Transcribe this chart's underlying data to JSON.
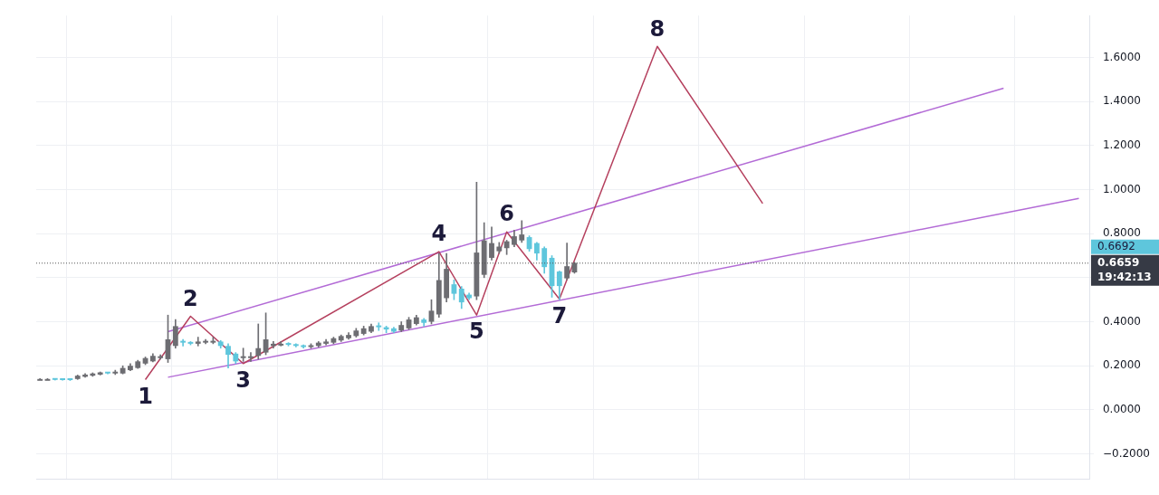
{
  "chart_data": {
    "type": "candlestick",
    "categories": [
      null,
      null,
      null,
      null,
      null,
      null,
      null,
      null,
      null,
      null,
      null,
      null,
      null,
      null,
      null,
      null,
      null,
      null,
      null,
      null,
      null,
      null,
      null,
      null,
      null,
      null,
      null,
      null,
      null,
      null,
      null,
      null,
      null,
      null,
      null,
      null,
      null,
      null,
      null,
      null,
      null,
      null,
      null,
      null,
      null,
      null,
      null,
      null,
      null,
      null,
      null,
      null,
      null,
      null,
      null,
      null,
      null,
      null,
      null,
      null,
      null,
      null,
      null,
      null,
      null,
      null,
      null,
      null,
      null,
      null,
      null,
      null,
      null,
      null,
      null,
      null,
      null,
      null,
      null,
      null,
      null,
      null,
      null,
      null,
      null,
      null,
      null,
      null,
      null,
      null,
      null,
      null,
      null,
      null,
      null,
      null,
      null,
      null,
      null,
      null,
      null,
      null,
      null,
      null,
      null,
      null,
      null,
      null,
      null,
      null,
      null,
      null,
      null,
      null,
      null,
      null,
      null,
      null,
      null,
      null,
      null,
      null,
      null,
      null,
      null,
      null,
      null,
      null,
      null,
      null,
      null,
      null,
      null,
      null,
      null,
      null,
      null,
      null,
      null,
      null
    ],
    "ohlc": [
      [
        0.14,
        0.142,
        0.138,
        0.14
      ],
      [
        0.14,
        0.142,
        0.137,
        0.14
      ],
      [
        0.138,
        0.139,
        0.135,
        0.136
      ],
      [
        0.137,
        0.138,
        0.134,
        0.135
      ],
      [
        0.136,
        0.137,
        0.133,
        0.135
      ],
      [
        0.14,
        0.158,
        0.138,
        0.155
      ],
      [
        0.15,
        0.165,
        0.148,
        0.16
      ],
      [
        0.155,
        0.168,
        0.152,
        0.165
      ],
      [
        0.16,
        0.172,
        0.158,
        0.17
      ],
      [
        0.168,
        0.17,
        0.163,
        0.165
      ],
      [
        0.165,
        0.18,
        0.16,
        0.166
      ],
      [
        0.165,
        0.2,
        0.163,
        0.19
      ],
      [
        0.18,
        0.21,
        0.178,
        0.2
      ],
      [
        0.19,
        0.225,
        0.188,
        0.22
      ],
      [
        0.21,
        0.24,
        0.205,
        0.235
      ],
      [
        0.22,
        0.255,
        0.218,
        0.245
      ],
      [
        0.235,
        0.25,
        0.23,
        0.24
      ],
      [
        0.23,
        0.43,
        0.215,
        0.32
      ],
      [
        0.29,
        0.41,
        0.28,
        0.38
      ],
      [
        0.31,
        0.32,
        0.29,
        0.305
      ],
      [
        0.305,
        0.31,
        0.295,
        0.3
      ],
      [
        0.3,
        0.33,
        0.29,
        0.31
      ],
      [
        0.305,
        0.32,
        0.3,
        0.31
      ],
      [
        0.305,
        0.33,
        0.3,
        0.31
      ],
      [
        0.31,
        0.315,
        0.28,
        0.29
      ],
      [
        0.29,
        0.3,
        0.19,
        0.25
      ],
      [
        0.255,
        0.26,
        0.21,
        0.22
      ],
      [
        0.235,
        0.28,
        0.22,
        0.24
      ],
      [
        0.235,
        0.26,
        0.22,
        0.24
      ],
      [
        0.245,
        0.39,
        0.23,
        0.28
      ],
      [
        0.26,
        0.44,
        0.25,
        0.32
      ],
      [
        0.29,
        0.31,
        0.28,
        0.3
      ],
      [
        0.3,
        0.31,
        0.29,
        0.3
      ],
      [
        0.3,
        0.305,
        0.29,
        0.295
      ],
      [
        0.295,
        0.3,
        0.285,
        0.29
      ],
      [
        0.29,
        0.295,
        0.28,
        0.285
      ],
      [
        0.285,
        0.3,
        0.28,
        0.29
      ],
      [
        0.29,
        0.31,
        0.285,
        0.305
      ],
      [
        0.3,
        0.32,
        0.295,
        0.31
      ],
      [
        0.305,
        0.33,
        0.3,
        0.325
      ],
      [
        0.315,
        0.34,
        0.31,
        0.335
      ],
      [
        0.325,
        0.35,
        0.32,
        0.34
      ],
      [
        0.335,
        0.37,
        0.33,
        0.36
      ],
      [
        0.345,
        0.38,
        0.34,
        0.37
      ],
      [
        0.355,
        0.39,
        0.35,
        0.38
      ],
      [
        0.38,
        0.395,
        0.36,
        0.375
      ],
      [
        0.375,
        0.38,
        0.35,
        0.365
      ],
      [
        0.37,
        0.375,
        0.35,
        0.355
      ],
      [
        0.36,
        0.4,
        0.355,
        0.385
      ],
      [
        0.37,
        0.42,
        0.365,
        0.41
      ],
      [
        0.39,
        0.43,
        0.385,
        0.42
      ],
      [
        0.41,
        0.415,
        0.38,
        0.395
      ],
      [
        0.4,
        0.5,
        0.39,
        0.45
      ],
      [
        0.433,
        0.71,
        0.42,
        0.589
      ],
      [
        0.507,
        0.71,
        0.49,
        0.64
      ],
      [
        0.57,
        0.59,
        0.5,
        0.527
      ],
      [
        0.55,
        0.56,
        0.46,
        0.488
      ],
      [
        0.523,
        0.53,
        0.5,
        0.507
      ],
      [
        0.515,
        1.034,
        0.5,
        0.714
      ],
      [
        0.613,
        0.85,
        0.6,
        0.769
      ],
      [
        0.69,
        0.83,
        0.68,
        0.757
      ],
      [
        0.72,
        0.76,
        0.71,
        0.741
      ],
      [
        0.734,
        0.77,
        0.705,
        0.765
      ],
      [
        0.749,
        0.816,
        0.74,
        0.788
      ],
      [
        0.769,
        0.859,
        0.76,
        0.796
      ],
      [
        0.784,
        0.79,
        0.72,
        0.73
      ],
      [
        0.757,
        0.76,
        0.68,
        0.71
      ],
      [
        0.734,
        0.74,
        0.62,
        0.648
      ],
      [
        0.69,
        0.7,
        0.511,
        0.562
      ],
      [
        0.628,
        0.63,
        0.5,
        0.562
      ],
      [
        0.597,
        0.757,
        0.59,
        0.652
      ],
      [
        0.624,
        0.67,
        0.62,
        0.667
      ],
      null,
      null,
      null,
      null,
      null,
      null,
      null,
      null,
      null,
      null,
      null,
      null,
      null,
      null,
      null,
      null,
      null,
      null,
      null,
      null,
      null,
      null,
      null,
      null,
      null,
      null,
      null,
      null,
      null,
      null,
      null,
      null,
      null,
      null,
      null,
      null,
      null,
      null,
      null,
      null,
      null,
      null,
      null,
      null,
      null,
      null,
      null,
      null,
      null,
      null,
      null,
      null,
      null,
      null,
      null,
      null,
      null,
      null,
      null,
      null,
      null,
      null,
      null,
      null,
      null,
      null,
      null,
      null
    ],
    "colors": [
      "#6d6d72",
      "#6d6d72",
      "#5ec6dc",
      "#5ec6dc",
      "#5ec6dc",
      "#6d6d72",
      "#6d6d72",
      "#6d6d72",
      "#6d6d72",
      "#5ec6dc",
      "#6d6d72",
      "#6d6d72",
      "#6d6d72",
      "#6d6d72",
      "#6d6d72",
      "#6d6d72",
      "#6d6d72",
      "#6d6d72",
      "#6d6d72",
      "#5ec6dc",
      "#5ec6dc",
      "#6d6d72",
      "#6d6d72",
      "#6d6d72",
      "#5ec6dc",
      "#5ec6dc",
      "#5ec6dc",
      "#6d6d72",
      "#6d6d72",
      "#6d6d72",
      "#6d6d72",
      "#6d6d72",
      "#6d6d72",
      "#5ec6dc",
      "#5ec6dc",
      "#5ec6dc",
      "#6d6d72",
      "#6d6d72",
      "#6d6d72",
      "#6d6d72",
      "#6d6d72",
      "#6d6d72",
      "#6d6d72",
      "#6d6d72",
      "#6d6d72",
      "#5ec6dc",
      "#5ec6dc",
      "#5ec6dc",
      "#6d6d72",
      "#6d6d72",
      "#6d6d72",
      "#5ec6dc",
      "#6d6d72",
      "#6d6d72",
      "#6d6d72",
      "#5ec6dc",
      "#5ec6dc",
      "#5ec6dc",
      "#6d6d72",
      "#6d6d72",
      "#6d6d72",
      "#6d6d72",
      "#6d6d72",
      "#6d6d72",
      "#6d6d72",
      "#5ec6dc",
      "#5ec6dc",
      "#5ec6dc",
      "#5ec6dc",
      "#5ec6dc",
      "#6d6d72",
      "#6d6d72",
      null,
      null,
      null,
      null,
      null,
      null,
      null,
      null,
      null,
      null,
      null,
      null,
      null,
      null,
      null,
      null,
      null,
      null,
      null,
      null,
      null,
      null,
      null,
      null,
      null,
      null,
      null,
      null,
      null,
      null,
      null,
      null,
      null,
      null,
      null,
      null,
      null,
      null,
      null,
      null,
      null,
      null,
      null,
      null,
      null,
      null,
      null,
      null,
      null,
      null,
      null,
      null,
      null,
      null,
      null,
      null,
      null,
      null,
      null,
      null,
      null,
      null,
      null,
      null,
      null,
      null,
      null,
      null
    ],
    "series": [
      {
        "type": "line",
        "color": "#b5405e",
        "values": [
          null,
          null,
          null,
          null,
          null,
          null,
          null,
          null,
          null,
          null,
          null,
          null,
          null,
          null,
          0.137,
          null,
          null,
          null,
          null,
          null,
          0.425,
          null,
          null,
          null,
          null,
          null,
          null,
          0.21,
          null,
          null,
          null,
          null,
          null,
          null,
          null,
          null,
          null,
          null,
          null,
          null,
          null,
          null,
          null,
          null,
          null,
          null,
          null,
          null,
          null,
          null,
          null,
          null,
          null,
          0.718,
          null,
          null,
          null,
          null,
          0.43,
          null,
          null,
          null,
          0.808,
          null,
          null,
          null,
          null,
          null,
          null,
          0.503,
          null,
          null,
          null,
          null,
          null,
          null,
          null,
          null,
          null,
          null,
          null,
          null,
          1.65,
          null,
          null,
          null,
          null,
          null,
          null,
          null,
          null,
          null,
          null,
          null,
          null,
          null,
          0.937,
          null,
          null,
          null,
          null,
          null,
          null,
          null,
          null,
          null,
          null,
          null,
          null,
          null,
          null,
          null,
          null,
          null,
          null,
          null,
          null,
          null,
          null,
          null,
          null,
          null,
          null,
          null,
          null,
          null,
          null,
          null,
          null,
          null,
          null,
          null,
          null,
          null,
          null,
          null,
          null,
          null,
          null,
          null
        ]
      },
      {
        "type": "line",
        "color": "#b36bd6",
        "values": [
          null,
          null,
          null,
          null,
          null,
          null,
          null,
          null,
          null,
          null,
          null,
          null,
          null,
          null,
          null,
          null,
          null,
          0.355,
          null,
          null,
          null,
          null,
          null,
          null,
          null,
          null,
          null,
          null,
          null,
          null,
          null,
          null,
          null,
          null,
          null,
          null,
          null,
          null,
          null,
          null,
          null,
          null,
          null,
          null,
          null,
          null,
          null,
          null,
          null,
          null,
          null,
          null,
          null,
          null,
          null,
          null,
          null,
          null,
          null,
          null,
          null,
          null,
          null,
          null,
          null,
          null,
          null,
          null,
          null,
          null,
          null,
          null,
          null,
          null,
          null,
          null,
          null,
          null,
          null,
          null,
          null,
          null,
          null,
          null,
          null,
          null,
          null,
          null,
          null,
          null,
          null,
          null,
          null,
          null,
          null,
          null,
          null,
          null,
          null,
          null,
          null,
          null,
          null,
          null,
          null,
          null,
          null,
          null,
          null,
          null,
          null,
          null,
          null,
          null,
          null,
          null,
          null,
          null,
          null,
          null,
          null,
          null,
          null,
          null,
          null,
          null,
          null,
          null,
          1.46,
          null,
          null,
          null,
          null,
          null,
          null,
          null,
          null,
          null,
          null,
          null
        ]
      },
      {
        "type": "line",
        "color": "#b36bd6",
        "values": [
          null,
          null,
          null,
          null,
          null,
          null,
          null,
          null,
          null,
          null,
          null,
          null,
          null,
          null,
          null,
          null,
          null,
          0.148,
          null,
          null,
          null,
          null,
          null,
          null,
          null,
          null,
          null,
          null,
          null,
          null,
          null,
          null,
          null,
          null,
          null,
          null,
          null,
          null,
          null,
          null,
          null,
          null,
          null,
          null,
          null,
          null,
          null,
          null,
          null,
          null,
          null,
          null,
          null,
          null,
          null,
          null,
          null,
          null,
          null,
          null,
          null,
          null,
          null,
          null,
          null,
          null,
          null,
          null,
          null,
          null,
          null,
          null,
          null,
          null,
          null,
          null,
          null,
          null,
          null,
          null,
          null,
          null,
          null,
          null,
          null,
          null,
          null,
          null,
          null,
          null,
          null,
          null,
          null,
          null,
          null,
          null,
          null,
          null,
          null,
          null,
          null,
          null,
          null,
          null,
          null,
          null,
          null,
          null,
          null,
          null,
          null,
          null,
          null,
          null,
          null,
          null,
          null,
          null,
          null,
          null,
          null,
          null,
          null,
          null,
          null,
          null,
          null,
          null,
          null,
          null,
          null,
          null,
          null,
          null,
          null,
          null,
          null,
          null,
          0.96,
          null
        ]
      }
    ],
    "ylim": [
      -0.316,
      1.79
    ],
    "yticks": [
      {
        "value": -0.2,
        "label": "−0.2000"
      },
      {
        "value": 0,
        "label": "0.0000"
      },
      {
        "value": 0.2,
        "label": "0.2000"
      },
      {
        "value": 0.4,
        "label": "0.4000"
      },
      {
        "value": 0.6,
        "label": null
      },
      {
        "value": 0.8,
        "label": "0.8000"
      },
      {
        "value": 1,
        "label": "1.0000"
      },
      {
        "value": 1.2,
        "label": "1.2000"
      },
      {
        "value": 1.4,
        "label": "1.4000"
      },
      {
        "value": 1.6,
        "label": "1.6000"
      }
    ],
    "ref_lines": [
      {
        "axis": "y",
        "value": 0.6659,
        "label": "0.6659\n19:42:13",
        "color": "#555555",
        "line_style": "dotted"
      }
    ],
    "annotations": [
      "1",
      "2",
      "3",
      "4",
      "5",
      "6",
      "7",
      "8",
      "0.6692"
    ],
    "grid": true,
    "legend": false,
    "tick_labels": "y"
  }
}
